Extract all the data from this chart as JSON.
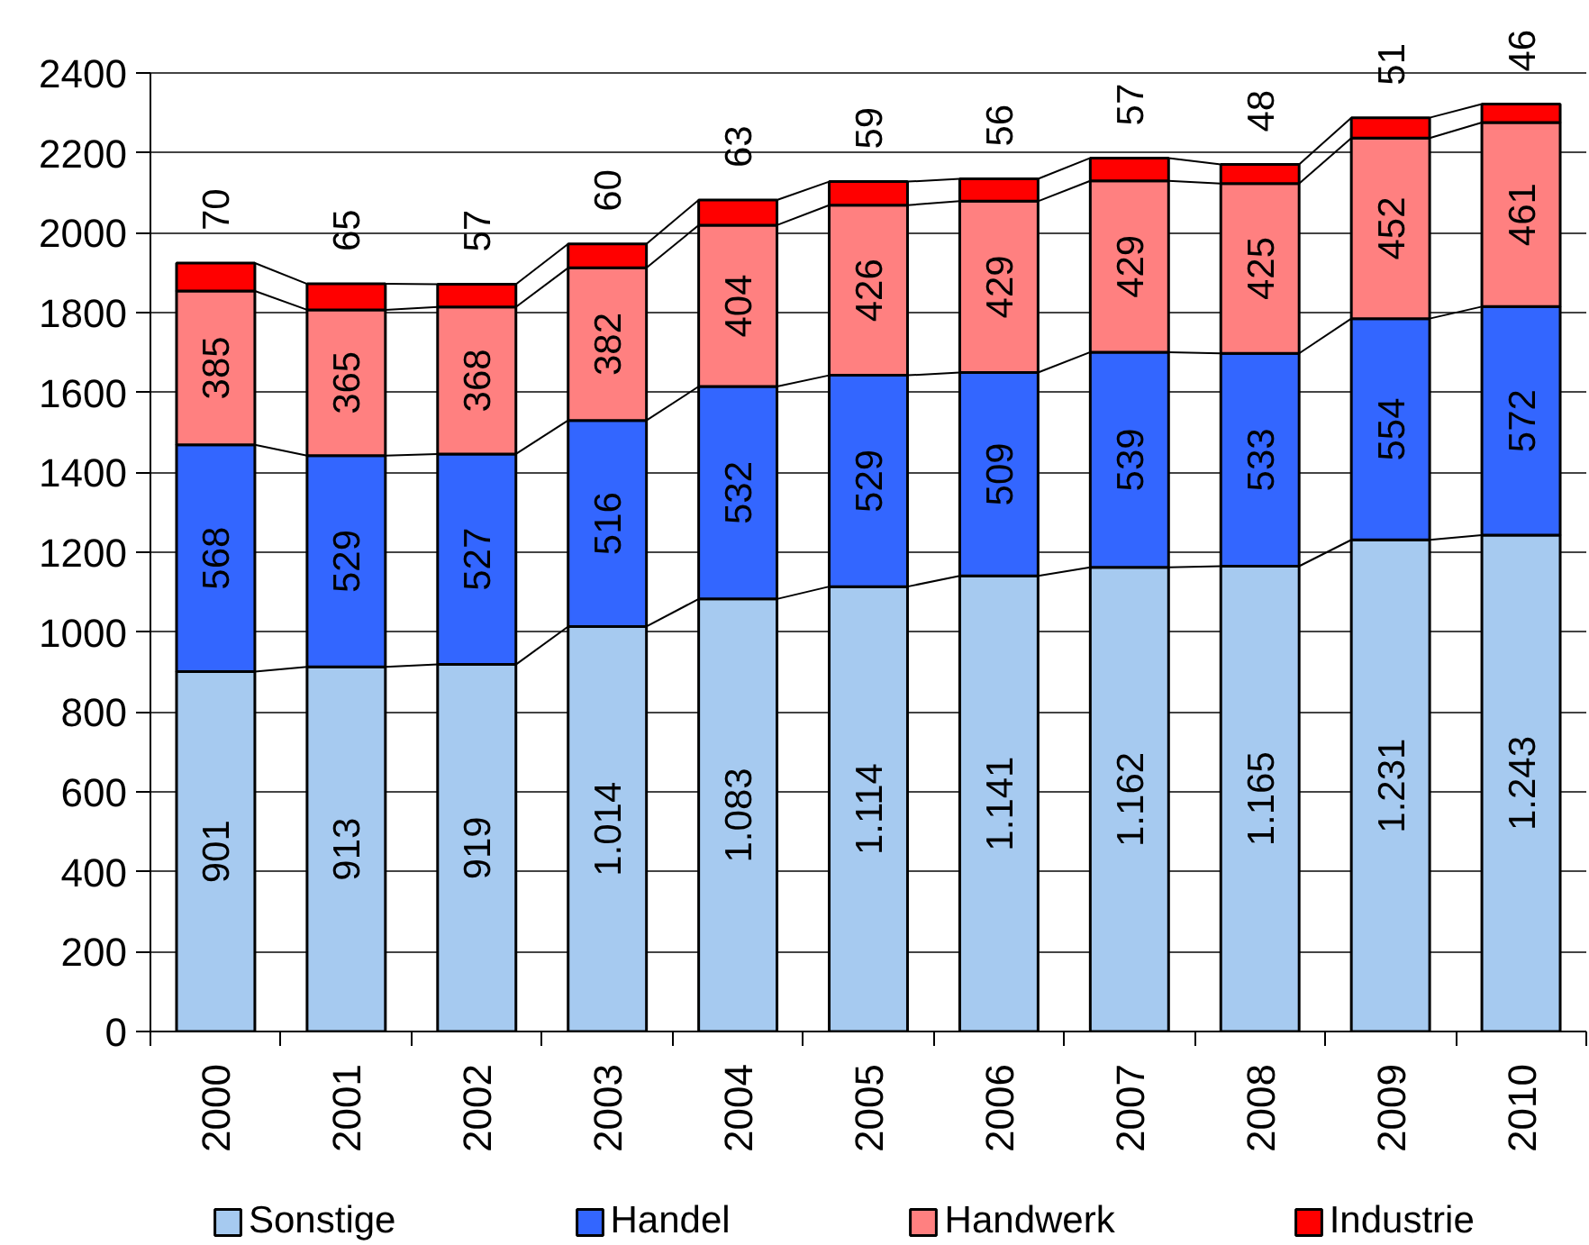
{
  "chart_data": {
    "type": "bar",
    "stacked": true,
    "categories": [
      "2000",
      "2001",
      "2002",
      "2003",
      "2004",
      "2005",
      "2006",
      "2007",
      "2008",
      "2009",
      "2010"
    ],
    "series": [
      {
        "name": "Sonstige",
        "color": "#a6caf0",
        "values": [
          901,
          913,
          919,
          1014,
          1083,
          1114,
          1141,
          1162,
          1165,
          1231,
          1243
        ],
        "value_labels": [
          "901",
          "913",
          "919",
          "1.014",
          "1.083",
          "1.114",
          "1.141",
          "1.162",
          "1.165",
          "1.231",
          "1.243"
        ]
      },
      {
        "name": "Handel",
        "color": "#3366ff",
        "values": [
          568,
          529,
          527,
          516,
          532,
          529,
          509,
          539,
          533,
          554,
          572
        ],
        "value_labels": [
          "568",
          "529",
          "527",
          "516",
          "532",
          "529",
          "509",
          "539",
          "533",
          "554",
          "572"
        ]
      },
      {
        "name": "Handwerk",
        "color": "#ff8080",
        "values": [
          385,
          365,
          368,
          382,
          404,
          426,
          429,
          429,
          425,
          452,
          461
        ],
        "value_labels": [
          "385",
          "365",
          "368",
          "382",
          "404",
          "426",
          "429",
          "429",
          "425",
          "452",
          "461"
        ]
      },
      {
        "name": "Industrie",
        "color": "#ff0000",
        "values": [
          70,
          65,
          57,
          60,
          63,
          59,
          56,
          57,
          48,
          51,
          46
        ],
        "value_labels": [
          "70",
          "65",
          "57",
          "60",
          "63",
          "59",
          "56",
          "57",
          "48",
          "51",
          "46"
        ]
      }
    ],
    "ylim": [
      0,
      2400
    ],
    "yticks": [
      0,
      200,
      400,
      600,
      800,
      1000,
      1200,
      1400,
      1600,
      1800,
      2000,
      2200,
      2400
    ],
    "grid": "y",
    "legend": "bottom"
  }
}
